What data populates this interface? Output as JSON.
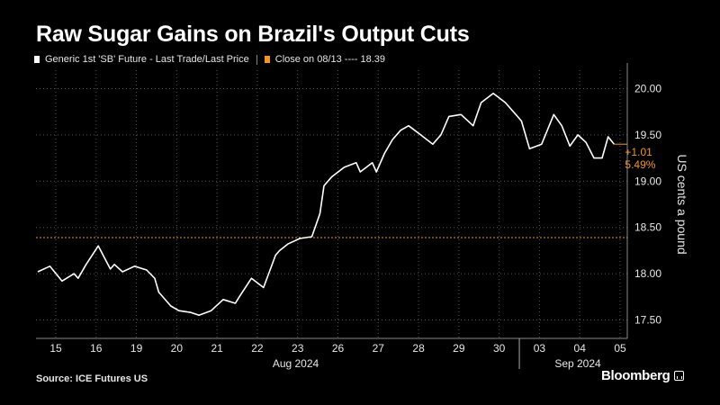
{
  "title": "Raw Sugar Gains on Brazil's Output Cuts",
  "legend": {
    "series_label": "Generic 1st 'SB' Future - Last Trade/Last Price",
    "ref_label": "Close on 08/13 ---- 18.39"
  },
  "source": "Source: ICE Futures US",
  "brand": "Bloomberg",
  "colors": {
    "background": "#000000",
    "series": "#ffffff",
    "reference": "#f2932c",
    "grid": "#555555"
  },
  "chart_data": {
    "type": "line",
    "ylabel": "US cents a pound",
    "ylim": [
      17.3,
      20.2
    ],
    "y_ticks": [
      "17.50",
      "18.00",
      "18.50",
      "19.00",
      "19.50",
      "20.00"
    ],
    "x_ticks": [
      "15",
      "16",
      "19",
      "20",
      "21",
      "22",
      "23",
      "26",
      "27",
      "28",
      "29",
      "30",
      "03",
      "04",
      "05"
    ],
    "x_groups": [
      "Aug 2024",
      "Sep 2024"
    ],
    "reference_line": {
      "label": "Close on 08/13",
      "value": 18.39
    },
    "change_annotation": {
      "abs": "+1.01",
      "pct": "5.49%"
    },
    "series": [
      {
        "name": "Generic 1st 'SB' Future - Last Trade/Last Price",
        "x": [
          0,
          0.3,
          0.6,
          0.9,
          1.0,
          1.2,
          1.5,
          1.8,
          1.9,
          2.1,
          2.4,
          2.7,
          2.9,
          3.0,
          3.3,
          3.5,
          3.8,
          4.0,
          4.3,
          4.6,
          4.9,
          5.0,
          5.3,
          5.6,
          5.9,
          6.0,
          6.2,
          6.5,
          6.8,
          7.0,
          7.1,
          7.3,
          7.6,
          7.9,
          8.0,
          8.3,
          8.4,
          8.6,
          8.8,
          9.0,
          9.2,
          9.5,
          9.8,
          10.0,
          10.2,
          10.5,
          10.8,
          11.0,
          11.3,
          11.6,
          11.9,
          12.0,
          12.2,
          12.5,
          12.8,
          13.0,
          13.2,
          13.4,
          13.6,
          13.8,
          14.0,
          14.15,
          14.3
        ],
        "values": [
          18.02,
          18.08,
          17.92,
          18.0,
          17.95,
          18.1,
          18.3,
          18.05,
          18.1,
          18.02,
          18.08,
          18.04,
          17.95,
          17.8,
          17.65,
          17.6,
          17.58,
          17.55,
          17.6,
          17.72,
          17.68,
          17.75,
          17.95,
          17.85,
          18.2,
          18.25,
          18.32,
          18.38,
          18.4,
          18.65,
          18.95,
          19.05,
          19.15,
          19.2,
          19.1,
          19.2,
          19.1,
          19.3,
          19.45,
          19.55,
          19.6,
          19.5,
          19.4,
          19.5,
          19.7,
          19.72,
          19.6,
          19.85,
          19.95,
          19.85,
          19.7,
          19.65,
          19.35,
          19.4,
          19.72,
          19.6,
          19.38,
          19.5,
          19.42,
          19.25,
          19.25,
          19.48,
          19.4
        ]
      }
    ]
  }
}
